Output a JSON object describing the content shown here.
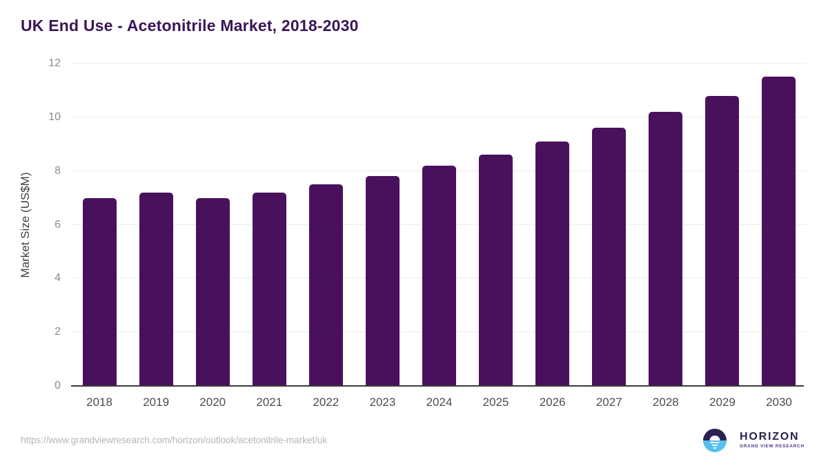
{
  "header": {
    "title": "UK End Use - Acetonitrile Market, 2018-2030"
  },
  "chart_data": {
    "type": "bar",
    "title": "UK End Use - Acetonitrile Market, 2018-2030",
    "categories": [
      "2018",
      "2019",
      "2020",
      "2021",
      "2022",
      "2023",
      "2024",
      "2025",
      "2026",
      "2027",
      "2028",
      "2029",
      "2030"
    ],
    "values": [
      7.0,
      7.2,
      7.0,
      7.2,
      7.5,
      7.8,
      8.2,
      8.6,
      9.1,
      9.6,
      10.2,
      10.8,
      11.5
    ],
    "xlabel": "",
    "ylabel": "Market Size (US$M)",
    "ylim": [
      0,
      12
    ],
    "yticks": [
      0,
      2,
      4,
      6,
      8,
      10,
      12
    ],
    "grid": true,
    "legend": "none",
    "bar_color": "#49115b"
  },
  "footer": {
    "source_url": "https://www.grandviewresearch.com/horizon/outlook/acetonitrile-market/uk",
    "logo": {
      "name": "HORIZON",
      "subtitle": "GRAND VIEW RESEARCH"
    }
  },
  "colors": {
    "bar_purple": "#49115b",
    "title_purple": "#3a1557",
    "logo_dark_purple": "#2b2050",
    "logo_light_blue": "#55c0ef",
    "gridline_gray": "#ececec",
    "axis_dark": "#3a3a3a",
    "url_gray": "#b5b5b5"
  }
}
